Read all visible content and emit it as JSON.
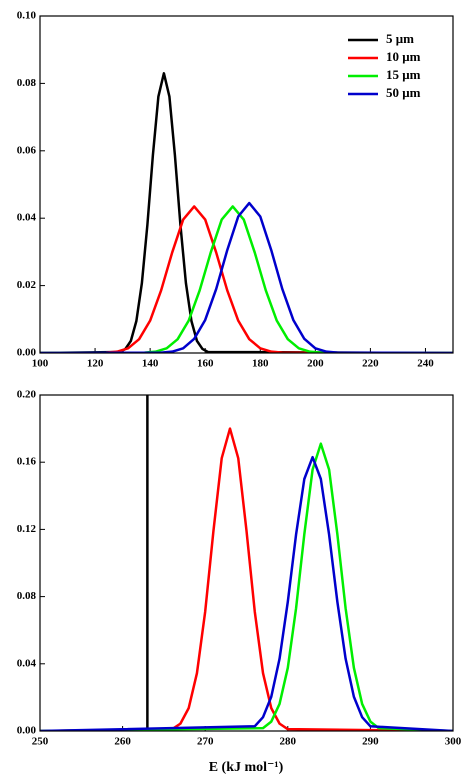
{
  "chart_data": [
    {
      "type": "line",
      "xlim": [
        100,
        250
      ],
      "ylim": [
        0,
        0.1
      ],
      "xticks": [
        100,
        120,
        140,
        160,
        180,
        200,
        220,
        240
      ],
      "yticks": [
        {
          "value": 0,
          "label": "0.00"
        },
        0.02,
        0.04,
        0.06,
        0.08,
        {
          "value": 0.1,
          "label": "0.10"
        }
      ],
      "legend": "upper right",
      "series": [
        {
          "name": "5 μm",
          "color": "#000000",
          "x": [
            100,
            129,
            131,
            133,
            135,
            137,
            139,
            141,
            143,
            145,
            147,
            149,
            151,
            153,
            155,
            157,
            159,
            161,
            250
          ],
          "values": [
            0,
            0.0003,
            0.0012,
            0.0036,
            0.0095,
            0.0207,
            0.038,
            0.0587,
            0.0761,
            0.083,
            0.0761,
            0.0587,
            0.038,
            0.0207,
            0.0095,
            0.0036,
            0.0012,
            0.0003,
            0
          ]
        },
        {
          "name": "10 μm",
          "color": "#ff0000",
          "x": [
            100,
            124,
            128,
            132,
            136,
            140,
            144,
            148,
            152,
            156,
            160,
            164,
            168,
            172,
            176,
            180,
            184,
            188,
            250
          ],
          "values": [
            0,
            0.0001,
            0.0004,
            0.0014,
            0.0041,
            0.0096,
            0.0186,
            0.0298,
            0.0396,
            0.0435,
            0.0396,
            0.0298,
            0.0186,
            0.0096,
            0.0041,
            0.0014,
            0.0004,
            0.0001,
            0
          ]
        },
        {
          "name": "15 μm",
          "color": "#00ee00",
          "x": [
            100,
            138,
            142,
            146,
            150,
            154,
            158,
            162,
            166,
            170,
            174,
            178,
            182,
            186,
            190,
            194,
            198,
            202,
            250
          ],
          "values": [
            0,
            0.0001,
            0.0004,
            0.0014,
            0.0041,
            0.0096,
            0.0186,
            0.0298,
            0.0396,
            0.0435,
            0.0396,
            0.0298,
            0.0186,
            0.0096,
            0.0041,
            0.0014,
            0.0004,
            0.0001,
            0
          ]
        },
        {
          "name": "50 μm",
          "color": "#0000cc",
          "x": [
            100,
            144,
            148,
            152,
            156,
            160,
            164,
            168,
            172,
            176,
            180,
            184,
            188,
            192,
            196,
            200,
            204,
            208,
            250
          ],
          "values": [
            0,
            0.0001,
            0.0004,
            0.0014,
            0.0042,
            0.0098,
            0.019,
            0.0305,
            0.0405,
            0.0445,
            0.0405,
            0.0305,
            0.019,
            0.0098,
            0.0042,
            0.0014,
            0.0004,
            0.0001,
            0
          ]
        }
      ]
    },
    {
      "type": "line",
      "xlabel": "E (kJ mol⁻¹)",
      "xlim": [
        250,
        300
      ],
      "ylim": [
        0,
        0.2
      ],
      "xticks": [
        250,
        260,
        270,
        280,
        290,
        300
      ],
      "yticks": [
        {
          "value": 0,
          "label": "0.00"
        },
        0.04,
        0.08,
        0.12,
        0.16,
        {
          "value": 0.2,
          "label": "0.20"
        }
      ],
      "series": [
        {
          "color": "#000000",
          "x": [
            263,
            263
          ],
          "values": [
            0,
            0.2
          ]
        },
        {
          "color": "#ff0000",
          "x": [
            250,
            266,
            267,
            268,
            269,
            270,
            271,
            272,
            273,
            274,
            275,
            276,
            277,
            278,
            279,
            280,
            300
          ],
          "values": [
            0,
            0.0011,
            0.0044,
            0.0136,
            0.0344,
            0.0711,
            0.1192,
            0.1624,
            0.18,
            0.1624,
            0.1192,
            0.0711,
            0.0344,
            0.0136,
            0.0044,
            0.0011,
            0
          ]
        },
        {
          "color": "#00ee00",
          "x": [
            250,
            277,
            278,
            279,
            280,
            281,
            282,
            283,
            284,
            285,
            286,
            287,
            288,
            289,
            290,
            291,
            300
          ],
          "values": [
            0,
            0.0017,
            0.0056,
            0.0161,
            0.0376,
            0.073,
            0.1171,
            0.1556,
            0.171,
            0.1556,
            0.1171,
            0.073,
            0.0376,
            0.0161,
            0.0056,
            0.0017,
            0
          ]
        },
        {
          "color": "#0000cc",
          "x": [
            250,
            276,
            277,
            278,
            279,
            280,
            281,
            282,
            283,
            284,
            285,
            286,
            287,
            288,
            289,
            290,
            300
          ],
          "values": [
            0,
            0.0028,
            0.0082,
            0.0204,
            0.043,
            0.0769,
            0.1169,
            0.15,
            0.163,
            0.15,
            0.1169,
            0.0769,
            0.043,
            0.0204,
            0.0082,
            0.0028,
            0
          ]
        }
      ]
    }
  ]
}
